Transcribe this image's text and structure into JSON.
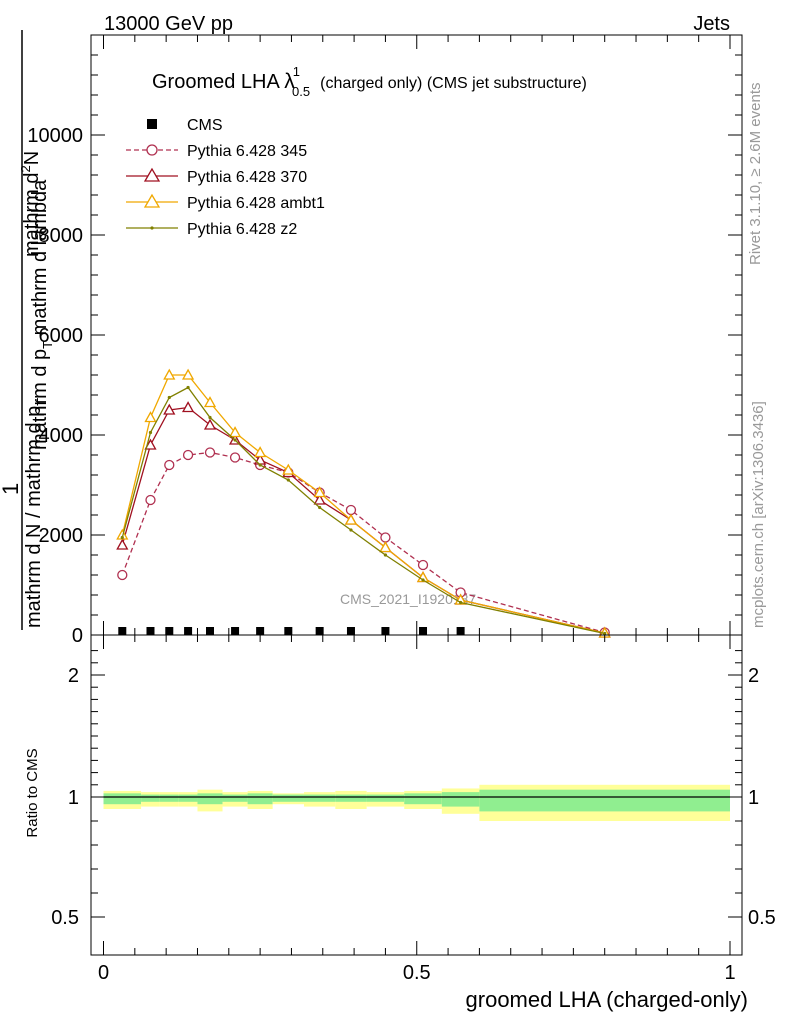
{
  "header": {
    "left": "13000 GeV pp",
    "right": "Jets"
  },
  "title": {
    "main": "Groomed LHA ",
    "symbol": "λ",
    "sup": "1",
    "sub": "0.5",
    "rest": "(charged only) (CMS jet substructure)"
  },
  "side_right_top": "Rivet 3.1.10, ≥ 2.6M events",
  "side_right_bottom": "mcplots.cern.ch [arXiv:1306.3436]",
  "watermark": "CMS_2021_I1920187",
  "ylabel_main": {
    "one": "1",
    "num1": "mathrm d",
    "num1_sup": "2",
    "num1_tail": "N",
    "den1": "mathrm d p",
    "den1_sub": "T",
    "den1_tail": " mathrm d lambda",
    "num2": "mathrm d N / mathrm d p",
    "num2_sub": "T"
  },
  "ylabel_ratio": "Ratio to CMS",
  "xlabel": "groomed LHA (charged-only)",
  "colors": {
    "cms": "#000000",
    "p345": "#b03050",
    "p370": "#a01020",
    "ambt1": "#f0a800",
    "z2": "#808000",
    "band_inner": "#90ee90",
    "band_outer": "#ffff99"
  },
  "chart_data": [
    {
      "type": "line",
      "x_range": [
        -0.02,
        1.02
      ],
      "y_range": [
        0,
        12000
      ],
      "yticks": [
        0,
        2000,
        4000,
        6000,
        8000,
        10000
      ],
      "ytick_labels": [
        "0",
        "2000",
        "4000",
        "6000",
        "8000",
        "10000"
      ],
      "xticks": [
        0,
        0.5,
        1
      ],
      "legend_position": "top-left",
      "series": [
        {
          "key": "cms",
          "name": "CMS",
          "marker": "square",
          "x": [
            0.03,
            0.075,
            0.105,
            0.135,
            0.17,
            0.21,
            0.25,
            0.295,
            0.345,
            0.395,
            0.45,
            0.51,
            0.57
          ],
          "y": [
            0,
            0,
            0,
            0,
            0,
            0,
            0,
            0,
            0,
            0,
            0,
            0,
            0
          ]
        },
        {
          "key": "p345",
          "name": "Pythia 6.428 345",
          "marker": "circle",
          "dash": "dashed",
          "x": [
            0.03,
            0.075,
            0.105,
            0.135,
            0.17,
            0.21,
            0.25,
            0.295,
            0.345,
            0.395,
            0.45,
            0.51,
            0.57,
            0.8
          ],
          "y": [
            1200,
            2700,
            3400,
            3600,
            3650,
            3550,
            3400,
            3250,
            2850,
            2500,
            1950,
            1400,
            850,
            50
          ]
        },
        {
          "key": "p370",
          "name": "Pythia 6.428 370",
          "marker": "triangle",
          "x": [
            0.03,
            0.075,
            0.105,
            0.135,
            0.17,
            0.21,
            0.25,
            0.295,
            0.345,
            0.395,
            0.45,
            0.51,
            0.57,
            0.8
          ],
          "y": [
            1800,
            3800,
            4500,
            4550,
            4200,
            3900,
            3500,
            3250,
            2700,
            2300,
            1750,
            1150,
            700,
            40
          ]
        },
        {
          "key": "ambt1",
          "name": "Pythia 6.428 ambt1",
          "marker": "triangle",
          "x": [
            0.03,
            0.075,
            0.105,
            0.135,
            0.17,
            0.21,
            0.25,
            0.295,
            0.345,
            0.395,
            0.45,
            0.51,
            0.57,
            0.8
          ],
          "y": [
            2000,
            4350,
            5200,
            5200,
            4650,
            4050,
            3650,
            3300,
            2850,
            2300,
            1750,
            1150,
            700,
            40
          ]
        },
        {
          "key": "z2",
          "name": "Pythia 6.428 z2",
          "marker": "dot",
          "x": [
            0.03,
            0.075,
            0.105,
            0.135,
            0.17,
            0.21,
            0.25,
            0.295,
            0.345,
            0.395,
            0.45,
            0.51,
            0.57,
            0.8
          ],
          "y": [
            1950,
            4050,
            4750,
            4950,
            4350,
            3900,
            3400,
            3100,
            2550,
            2100,
            1600,
            1100,
            650,
            30
          ]
        }
      ]
    },
    {
      "type": "area",
      "x_range": [
        -0.02,
        1.02
      ],
      "y_range": [
        0.3,
        2.3
      ],
      "yticks": [
        0.5,
        1,
        2
      ],
      "ytick_labels": [
        "0.5",
        "1",
        "2"
      ],
      "xticks": [
        0,
        0.5,
        1
      ],
      "xtick_labels": [
        "0",
        "0.5",
        "1"
      ],
      "reference_line": 1,
      "bin_edges": [
        0.0,
        0.06,
        0.09,
        0.12,
        0.15,
        0.19,
        0.23,
        0.27,
        0.32,
        0.37,
        0.42,
        0.48,
        0.54,
        0.6,
        1.0
      ],
      "band_inner": [
        0.03,
        0.02,
        0.02,
        0.02,
        0.03,
        0.02,
        0.03,
        0.02,
        0.02,
        0.02,
        0.02,
        0.03,
        0.04,
        0.06
      ],
      "band_outer": [
        0.05,
        0.04,
        0.04,
        0.04,
        0.06,
        0.04,
        0.05,
        0.03,
        0.04,
        0.05,
        0.04,
        0.05,
        0.07,
        0.1
      ]
    }
  ]
}
